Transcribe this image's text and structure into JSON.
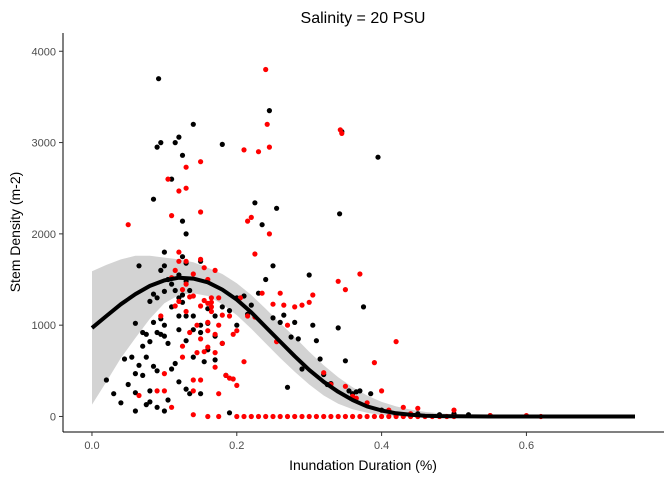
{
  "chart_data": {
    "type": "scatter",
    "title": "Salinity = 20 PSU",
    "xlabel": "Inundation Duration (%)",
    "ylabel": "Stem Density (m-2)",
    "xlim": [
      -0.04,
      0.79
    ],
    "ylim": [
      -170,
      4200
    ],
    "x_ticks": [
      0.0,
      0.2,
      0.4,
      0.6
    ],
    "x_tick_labels": [
      "0.0",
      "0.2",
      "0.4",
      "0.6"
    ],
    "y_ticks": [
      0,
      1000,
      2000,
      3000,
      4000
    ],
    "y_tick_labels": [
      "0",
      "1000",
      "2000",
      "3000",
      "4000"
    ],
    "grid": false,
    "legend": "none",
    "colors": {
      "black_points": "#000000",
      "red_points": "#ff0000",
      "fit_line": "#000000",
      "confidence_band": "#d3d3d3"
    },
    "series": [
      {
        "color": "black",
        "points": [
          [
            0.02,
            400
          ],
          [
            0.03,
            250
          ],
          [
            0.04,
            150
          ],
          [
            0.045,
            630
          ],
          [
            0.05,
            350
          ],
          [
            0.055,
            650
          ],
          [
            0.06,
            1020
          ],
          [
            0.06,
            260
          ],
          [
            0.06,
            60
          ],
          [
            0.065,
            560
          ],
          [
            0.06,
            470
          ],
          [
            0.065,
            1650
          ],
          [
            0.07,
            920
          ],
          [
            0.07,
            770
          ],
          [
            0.07,
            450
          ],
          [
            0.075,
            900
          ],
          [
            0.075,
            650
          ],
          [
            0.075,
            130
          ],
          [
            0.08,
            820
          ],
          [
            0.08,
            280
          ],
          [
            0.08,
            160
          ],
          [
            0.08,
            1260
          ],
          [
            0.085,
            1340
          ],
          [
            0.085,
            1030
          ],
          [
            0.085,
            550
          ],
          [
            0.085,
            2380
          ],
          [
            0.09,
            2950
          ],
          [
            0.09,
            1300
          ],
          [
            0.09,
            920
          ],
          [
            0.09,
            500
          ],
          [
            0.09,
            100
          ],
          [
            0.092,
            3700
          ],
          [
            0.095,
            1600
          ],
          [
            0.095,
            1070
          ],
          [
            0.095,
            900
          ],
          [
            0.095,
            3000
          ],
          [
            0.1,
            1370
          ],
          [
            0.1,
            1000
          ],
          [
            0.1,
            880
          ],
          [
            0.1,
            1650
          ],
          [
            0.1,
            60
          ],
          [
            0.1,
            1800
          ],
          [
            0.105,
            1500
          ],
          [
            0.105,
            800
          ],
          [
            0.105,
            180
          ],
          [
            0.11,
            1200
          ],
          [
            0.11,
            520
          ],
          [
            0.11,
            2600
          ],
          [
            0.11,
            1450
          ],
          [
            0.115,
            3000
          ],
          [
            0.115,
            1380
          ],
          [
            0.115,
            580
          ],
          [
            0.12,
            3060
          ],
          [
            0.12,
            1100
          ],
          [
            0.12,
            950
          ],
          [
            0.12,
            1550
          ],
          [
            0.12,
            1300
          ],
          [
            0.12,
            380
          ],
          [
            0.125,
            2860
          ],
          [
            0.125,
            1330
          ],
          [
            0.125,
            1250
          ],
          [
            0.125,
            2140
          ],
          [
            0.125,
            1750
          ],
          [
            0.13,
            2000
          ],
          [
            0.13,
            1680
          ],
          [
            0.13,
            1480
          ],
          [
            0.13,
            830
          ],
          [
            0.13,
            1100
          ],
          [
            0.13,
            300
          ],
          [
            0.135,
            1380
          ],
          [
            0.135,
            250
          ],
          [
            0.14,
            3200
          ],
          [
            0.14,
            1100
          ],
          [
            0.14,
            650
          ],
          [
            0.14,
            950
          ],
          [
            0.15,
            1700
          ],
          [
            0.15,
            920
          ],
          [
            0.15,
            1000
          ],
          [
            0.15,
            250
          ],
          [
            0.155,
            600
          ],
          [
            0.16,
            1180
          ],
          [
            0.16,
            1020
          ],
          [
            0.16,
            730
          ],
          [
            0.17,
            1100
          ],
          [
            0.17,
            880
          ],
          [
            0.17,
            620
          ],
          [
            0.18,
            2980
          ],
          [
            0.18,
            1200
          ],
          [
            0.18,
            800
          ],
          [
            0.185,
            450
          ],
          [
            0.19,
            40
          ],
          [
            0.19,
            1160
          ],
          [
            0.2,
            1300
          ],
          [
            0.2,
            1000
          ],
          [
            0.21,
            1320
          ],
          [
            0.215,
            1120
          ],
          [
            0.22,
            1220
          ],
          [
            0.225,
            2340
          ],
          [
            0.23,
            1350
          ],
          [
            0.235,
            2100
          ],
          [
            0.24,
            1500
          ],
          [
            0.245,
            3350
          ],
          [
            0.25,
            1650
          ],
          [
            0.25,
            1080
          ],
          [
            0.255,
            2280
          ],
          [
            0.26,
            1030
          ],
          [
            0.265,
            1110
          ],
          [
            0.27,
            320
          ],
          [
            0.275,
            870
          ],
          [
            0.28,
            1030
          ],
          [
            0.285,
            850
          ],
          [
            0.29,
            520
          ],
          [
            0.3,
            1550
          ],
          [
            0.305,
            1000
          ],
          [
            0.31,
            830
          ],
          [
            0.315,
            630
          ],
          [
            0.32,
            460
          ],
          [
            0.325,
            350
          ],
          [
            0.33,
            360
          ],
          [
            0.34,
            970
          ],
          [
            0.342,
            2220
          ],
          [
            0.345,
            3120
          ],
          [
            0.35,
            610
          ],
          [
            0.355,
            280
          ],
          [
            0.36,
            250
          ],
          [
            0.365,
            270
          ],
          [
            0.37,
            280
          ],
          [
            0.375,
            1200
          ],
          [
            0.385,
            250
          ],
          [
            0.395,
            2840
          ],
          [
            0.4,
            70
          ],
          [
            0.42,
            20
          ],
          [
            0.45,
            30
          ],
          [
            0.48,
            20
          ],
          [
            0.5,
            30
          ],
          [
            0.52,
            20
          ],
          [
            0.55,
            10
          ]
        ]
      },
      {
        "color": "red",
        "points": [
          [
            0.05,
            2100
          ],
          [
            0.065,
            230
          ],
          [
            0.09,
            280
          ],
          [
            0.095,
            1100
          ],
          [
            0.1,
            470
          ],
          [
            0.1,
            280
          ],
          [
            0.105,
            2600
          ],
          [
            0.11,
            1520
          ],
          [
            0.11,
            2200
          ],
          [
            0.11,
            100
          ],
          [
            0.115,
            1210
          ],
          [
            0.115,
            1600
          ],
          [
            0.12,
            2470
          ],
          [
            0.12,
            1800
          ],
          [
            0.12,
            1700
          ],
          [
            0.12,
            1260
          ],
          [
            0.125,
            1390
          ],
          [
            0.125,
            770
          ],
          [
            0.125,
            650
          ],
          [
            0.13,
            2730
          ],
          [
            0.13,
            2500
          ],
          [
            0.13,
            1700
          ],
          [
            0.13,
            1450
          ],
          [
            0.13,
            1150
          ],
          [
            0.135,
            1310
          ],
          [
            0.135,
            920
          ],
          [
            0.14,
            1560
          ],
          [
            0.14,
            1320
          ],
          [
            0.14,
            400
          ],
          [
            0.14,
            280
          ],
          [
            0.14,
            20
          ],
          [
            0.145,
            1000
          ],
          [
            0.145,
            700
          ],
          [
            0.15,
            2790
          ],
          [
            0.15,
            2240
          ],
          [
            0.15,
            1720
          ],
          [
            0.15,
            1210
          ],
          [
            0.15,
            850
          ],
          [
            0.15,
            400
          ],
          [
            0.155,
            1630
          ],
          [
            0.155,
            1270
          ],
          [
            0.155,
            710
          ],
          [
            0.16,
            1500
          ],
          [
            0.16,
            1240
          ],
          [
            0.16,
            1030
          ],
          [
            0.16,
            940
          ],
          [
            0.16,
            760
          ],
          [
            0.165,
            1300
          ],
          [
            0.165,
            1250
          ],
          [
            0.165,
            1200
          ],
          [
            0.165,
            1150
          ],
          [
            0.17,
            1600
          ],
          [
            0.17,
            900
          ],
          [
            0.17,
            700
          ],
          [
            0.17,
            540
          ],
          [
            0.175,
            1300
          ],
          [
            0.175,
            1000
          ],
          [
            0.175,
            250
          ],
          [
            0.18,
            1110
          ],
          [
            0.18,
            800
          ],
          [
            0.185,
            450
          ],
          [
            0.19,
            1100
          ],
          [
            0.19,
            420
          ],
          [
            0.195,
            900
          ],
          [
            0.195,
            410
          ],
          [
            0.2,
            940
          ],
          [
            0.2,
            340
          ],
          [
            0.205,
            1300
          ],
          [
            0.21,
            2920
          ],
          [
            0.21,
            600
          ],
          [
            0.215,
            2140
          ],
          [
            0.215,
            1100
          ],
          [
            0.22,
            2180
          ],
          [
            0.225,
            1780
          ],
          [
            0.225,
            1090
          ],
          [
            0.23,
            2900
          ],
          [
            0.235,
            1350
          ],
          [
            0.24,
            3800
          ],
          [
            0.242,
            3200
          ],
          [
            0.245,
            2950
          ],
          [
            0.245,
            2000
          ],
          [
            0.25,
            1230
          ],
          [
            0.255,
            820
          ],
          [
            0.26,
            1350
          ],
          [
            0.265,
            1220
          ],
          [
            0.27,
            1000
          ],
          [
            0.28,
            1200
          ],
          [
            0.29,
            1220
          ],
          [
            0.3,
            1250
          ],
          [
            0.305,
            1330
          ],
          [
            0.32,
            480
          ],
          [
            0.33,
            350
          ],
          [
            0.34,
            1480
          ],
          [
            0.343,
            3140
          ],
          [
            0.345,
            3100
          ],
          [
            0.35,
            1390
          ],
          [
            0.35,
            330
          ],
          [
            0.36,
            220
          ],
          [
            0.365,
            200
          ],
          [
            0.37,
            1560
          ],
          [
            0.38,
            150
          ],
          [
            0.39,
            590
          ],
          [
            0.4,
            280
          ],
          [
            0.41,
            70
          ],
          [
            0.42,
            820
          ],
          [
            0.43,
            100
          ],
          [
            0.44,
            30
          ],
          [
            0.45,
            90
          ],
          [
            0.5,
            70
          ],
          [
            0.55,
            10
          ],
          [
            0.6,
            10
          ],
          [
            0.62,
            0
          ],
          [
            0.16,
            0
          ],
          [
            0.175,
            0
          ],
          [
            0.2,
            0
          ],
          [
            0.21,
            0
          ],
          [
            0.22,
            0
          ],
          [
            0.23,
            0
          ],
          [
            0.24,
            0
          ],
          [
            0.25,
            0
          ],
          [
            0.26,
            0
          ],
          [
            0.27,
            0
          ],
          [
            0.28,
            0
          ],
          [
            0.29,
            0
          ],
          [
            0.3,
            0
          ],
          [
            0.31,
            0
          ],
          [
            0.32,
            0
          ],
          [
            0.33,
            0
          ],
          [
            0.34,
            0
          ],
          [
            0.35,
            0
          ],
          [
            0.36,
            0
          ],
          [
            0.37,
            0
          ],
          [
            0.38,
            0
          ],
          [
            0.39,
            0
          ],
          [
            0.4,
            0
          ],
          [
            0.41,
            0
          ],
          [
            0.42,
            0
          ],
          [
            0.43,
            0
          ],
          [
            0.44,
            0
          ],
          [
            0.45,
            0
          ],
          [
            0.46,
            0
          ],
          [
            0.47,
            0
          ],
          [
            0.48,
            0
          ],
          [
            0.49,
            0
          ],
          [
            0.5,
            0
          ]
        ]
      }
    ],
    "fit_line": {
      "x": [
        0.0,
        0.02,
        0.04,
        0.06,
        0.08,
        0.1,
        0.12,
        0.14,
        0.16,
        0.18,
        0.2,
        0.22,
        0.24,
        0.26,
        0.28,
        0.3,
        0.32,
        0.34,
        0.36,
        0.38,
        0.4,
        0.42,
        0.44,
        0.46,
        0.48,
        0.5,
        0.55,
        0.6,
        0.65,
        0.7,
        0.75
      ],
      "y": [
        970,
        1100,
        1230,
        1340,
        1430,
        1490,
        1520,
        1510,
        1470,
        1390,
        1280,
        1140,
        980,
        820,
        660,
        510,
        380,
        270,
        180,
        110,
        65,
        35,
        18,
        8,
        4,
        2,
        0,
        0,
        0,
        0,
        0
      ]
    },
    "confidence_band": {
      "x": [
        0.0,
        0.02,
        0.04,
        0.06,
        0.08,
        0.1,
        0.12,
        0.14,
        0.16,
        0.18,
        0.2,
        0.22,
        0.24,
        0.26,
        0.28,
        0.3,
        0.32,
        0.34,
        0.36,
        0.38,
        0.4,
        0.42,
        0.44,
        0.46,
        0.48,
        0.5,
        0.55,
        0.6,
        0.65,
        0.7,
        0.75
      ],
      "lower": [
        130,
        380,
        640,
        860,
        1070,
        1240,
        1330,
        1350,
        1320,
        1230,
        1110,
        960,
        800,
        640,
        490,
        350,
        230,
        140,
        80,
        40,
        15,
        5,
        0,
        0,
        0,
        0,
        0,
        0,
        0,
        0,
        0
      ],
      "upper": [
        1590,
        1660,
        1720,
        1760,
        1760,
        1740,
        1720,
        1690,
        1630,
        1560,
        1460,
        1330,
        1180,
        1020,
        870,
        710,
        560,
        430,
        320,
        230,
        160,
        110,
        75,
        50,
        35,
        25,
        10,
        5,
        0,
        0,
        0
      ]
    }
  }
}
